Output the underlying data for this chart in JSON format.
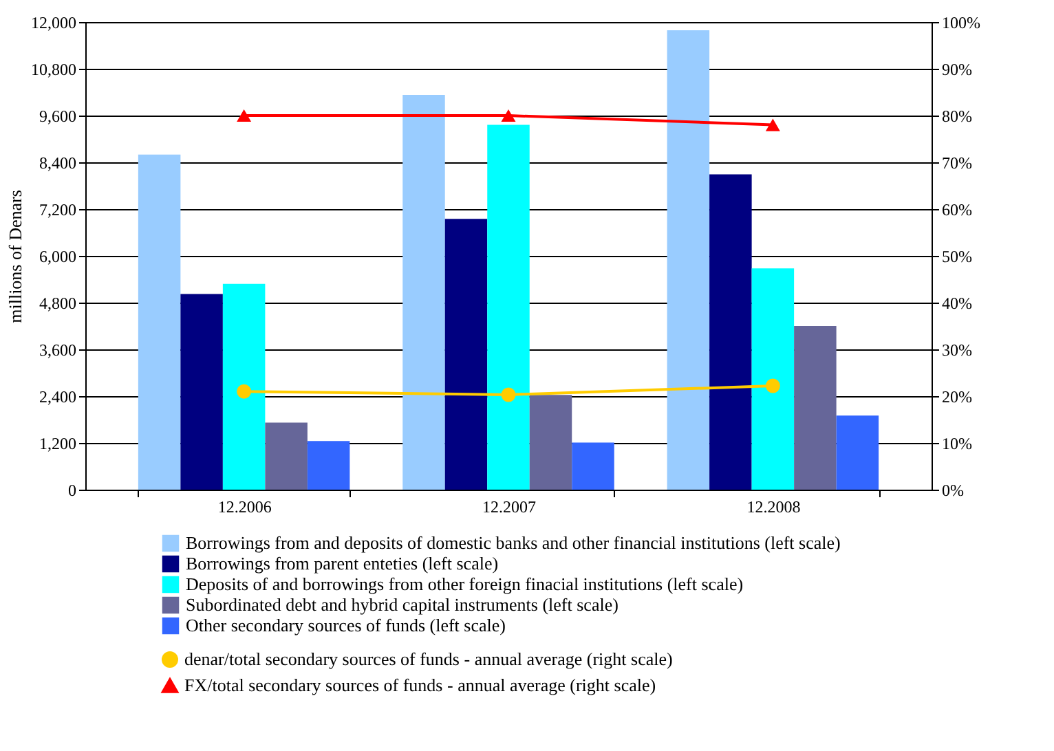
{
  "chart_data": {
    "type": "bar",
    "ylabel": "millions of Denars",
    "categories": [
      "12.2006",
      "12.2007",
      "12.2008"
    ],
    "series": [
      {
        "name": "Borrowings from and deposits of domestic banks and other financial institutions (left scale)",
        "color": "#99ccff",
        "values": [
          8600,
          10130,
          11790
        ]
      },
      {
        "name": "Borrowings from parent enteties (left scale)",
        "color": "#000080",
        "values": [
          5020,
          6950,
          8090
        ]
      },
      {
        "name": "Deposits of and borrowings from other foreign finacial institutions (left scale)",
        "color": "#00ffff",
        "values": [
          5280,
          9360,
          5680
        ]
      },
      {
        "name": "Subordinated debt and hybrid capital instruments (left scale)",
        "color": "#666699",
        "values": [
          1720,
          2430,
          4200
        ]
      },
      {
        "name": "Other secondary sources of funds (left scale)",
        "color": "#3366ff",
        "values": [
          1250,
          1210,
          1900
        ]
      },
      {
        "name": "denar/total secondary sources of funds - annual average (right scale)",
        "color": "#ffcc00",
        "type": "line",
        "axis": "y2",
        "marker": "circle",
        "values": [
          21,
          20.3,
          22.2
        ]
      },
      {
        "name": "FX/total secondary sources of funds - annual average (right scale)",
        "color": "#ff0000",
        "type": "line",
        "axis": "y2",
        "marker": "triangle",
        "values": [
          80,
          80,
          78
        ]
      }
    ],
    "ylim": [
      0,
      12000
    ],
    "yticks": [
      0,
      {
        "value": 1200,
        "label": "1,200"
      },
      {
        "value": 2400,
        "label": "2,400"
      },
      {
        "value": 3600,
        "label": "3,600"
      },
      {
        "value": 4800,
        "label": "4,800"
      },
      {
        "value": 6000,
        "label": "6,000"
      },
      {
        "value": 7200,
        "label": "7,200"
      },
      {
        "value": 8400,
        "label": "8,400"
      },
      {
        "value": 9600,
        "label": "9,600"
      },
      {
        "value": 10800,
        "label": "10,800"
      },
      {
        "value": 12000,
        "label": "12,000"
      }
    ],
    "y2lim": [
      0,
      100
    ],
    "y2ticks": [
      {
        "value": 0,
        "label": "0%"
      },
      {
        "value": 10,
        "label": "10%"
      },
      {
        "value": 20,
        "label": "20%"
      },
      {
        "value": 30,
        "label": "30%"
      },
      {
        "value": 40,
        "label": "40%"
      },
      {
        "value": 50,
        "label": "50%"
      },
      {
        "value": 60,
        "label": "60%"
      },
      {
        "value": 70,
        "label": "70%"
      },
      {
        "value": 80,
        "label": "80%"
      },
      {
        "value": 90,
        "label": "90%"
      },
      {
        "value": 100,
        "label": "100%"
      }
    ],
    "grid": "y",
    "legend": "bottom"
  }
}
